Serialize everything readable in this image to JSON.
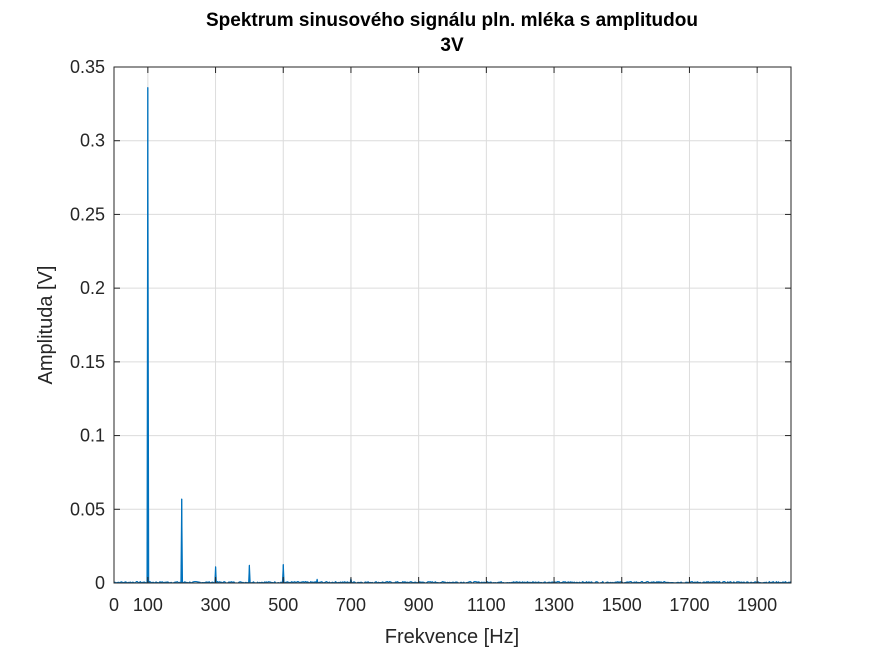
{
  "chart_data": {
    "type": "line",
    "title": [
      "Spektrum sinusového signálu pln. mléka s amplitudou",
      "3V"
    ],
    "xlabel": "Frekvence [Hz]",
    "ylabel": "Amplituda [V]",
    "xlim": [
      0,
      2000
    ],
    "ylim": [
      0,
      0.35
    ],
    "xticks": [
      0,
      100,
      300,
      500,
      700,
      900,
      1100,
      1300,
      1500,
      1700,
      1900
    ],
    "xticklabels": [
      "0",
      "100",
      "300",
      "500",
      "700",
      "900",
      "1100",
      "1300",
      "1500",
      "1700",
      "1900"
    ],
    "yticks": [
      0,
      0.05,
      0.1,
      0.15,
      0.2,
      0.25,
      0.3,
      0.35
    ],
    "yticklabels": [
      "0",
      "0.05",
      "0.1",
      "0.15",
      "0.2",
      "0.25",
      "0.3",
      "0.35"
    ],
    "grid": true,
    "line_color": "#0072BD",
    "grid_color": "#dcdcdc",
    "peaks": [
      {
        "x": 100,
        "y": 0.336
      },
      {
        "x": 200,
        "y": 0.057
      },
      {
        "x": 300,
        "y": 0.011
      },
      {
        "x": 400,
        "y": 0.012
      },
      {
        "x": 500,
        "y": 0.0125
      },
      {
        "x": 600,
        "y": 0.0025
      },
      {
        "x": 700,
        "y": 0.003
      }
    ],
    "noise_floor": 0.001
  }
}
